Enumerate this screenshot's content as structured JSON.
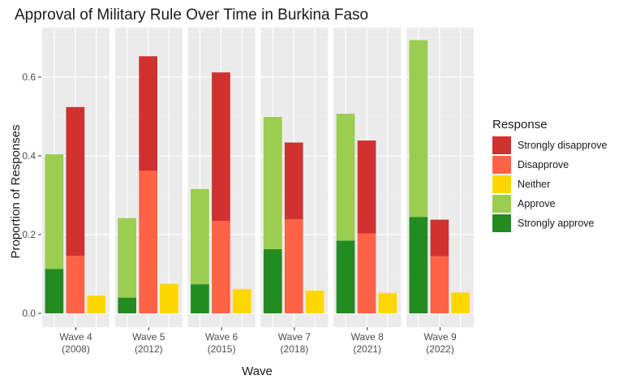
{
  "chart_data": {
    "type": "bar",
    "subtype": "faceted-stacked-bar",
    "title": "Approval of Military Rule Over Time in Burkina Faso",
    "xlabel": "Wave",
    "ylabel": "Proportion of Responses",
    "ylim": [
      0,
      0.72
    ],
    "yticks": [
      0.0,
      0.2,
      0.4,
      0.6
    ],
    "ytick_labels": [
      "0.0",
      "0.2",
      "0.4",
      "0.6"
    ],
    "grid": true,
    "legend": {
      "title": "Response",
      "position": "right",
      "entries": [
        {
          "key": "strongly_disapprove",
          "label": "Strongly disapprove",
          "color": "#d03232"
        },
        {
          "key": "disapprove",
          "label": "Disapprove",
          "color": "#ff6347"
        },
        {
          "key": "neither",
          "label": "Neither",
          "color": "#ffd700"
        },
        {
          "key": "approve",
          "label": "Approve",
          "color": "#9acd50"
        },
        {
          "key": "strongly_approve",
          "label": "Strongly approve",
          "color": "#228b22"
        }
      ]
    },
    "facets": [
      {
        "label_line1": "Wave 4",
        "label_line2": "(2008)",
        "bars": {
          "approve_group": {
            "strongly_approve": 0.113,
            "approve": 0.291
          },
          "disapprove_group": {
            "disapprove": 0.146,
            "strongly_disapprove": 0.378
          },
          "neither": 0.045
        }
      },
      {
        "label_line1": "Wave 5",
        "label_line2": "(2012)",
        "bars": {
          "approve_group": {
            "strongly_approve": 0.04,
            "approve": 0.202
          },
          "disapprove_group": {
            "disapprove": 0.362,
            "strongly_disapprove": 0.291
          },
          "neither": 0.075
        }
      },
      {
        "label_line1": "Wave 6",
        "label_line2": "(2015)",
        "bars": {
          "approve_group": {
            "strongly_approve": 0.074,
            "approve": 0.242
          },
          "disapprove_group": {
            "disapprove": 0.235,
            "strongly_disapprove": 0.377
          },
          "neither": 0.062
        }
      },
      {
        "label_line1": "Wave 7",
        "label_line2": "(2018)",
        "bars": {
          "approve_group": {
            "strongly_approve": 0.163,
            "approve": 0.336
          },
          "disapprove_group": {
            "disapprove": 0.239,
            "strongly_disapprove": 0.195
          },
          "neither": 0.058
        }
      },
      {
        "label_line1": "Wave 8",
        "label_line2": "(2021)",
        "bars": {
          "approve_group": {
            "strongly_approve": 0.185,
            "approve": 0.322
          },
          "disapprove_group": {
            "disapprove": 0.203,
            "strongly_disapprove": 0.236
          },
          "neither": 0.052
        }
      },
      {
        "label_line1": "Wave 9",
        "label_line2": "(2022)",
        "bars": {
          "approve_group": {
            "strongly_approve": 0.245,
            "approve": 0.449
          },
          "disapprove_group": {
            "disapprove": 0.145,
            "strongly_disapprove": 0.093
          },
          "neither": 0.053
        }
      }
    ]
  }
}
